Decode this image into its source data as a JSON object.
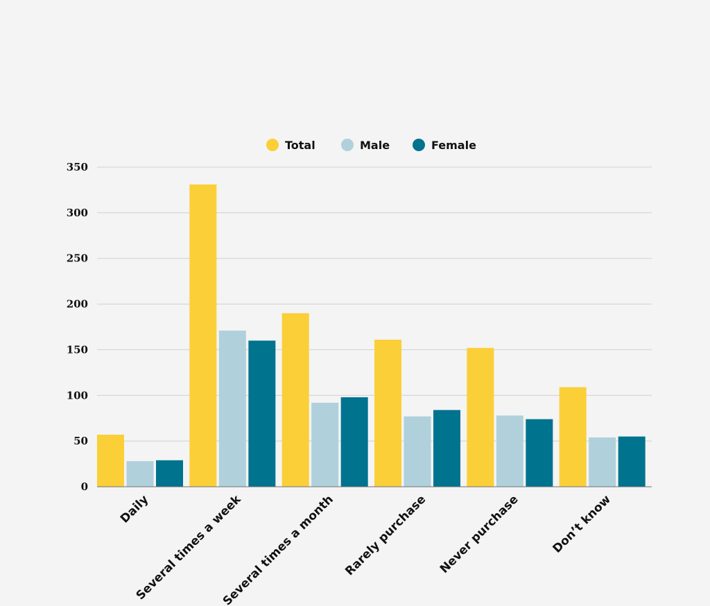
{
  "chart_data": {
    "type": "bar",
    "title": "",
    "xlabel": "",
    "ylabel": "",
    "categories": [
      "Daily",
      "Several times a week",
      "Several times a month",
      "Rarely purchase",
      "Never purchase",
      "Don’t know"
    ],
    "series": [
      {
        "name": "Total",
        "color": "#fbcf37",
        "values": [
          57,
          331,
          190,
          161,
          152,
          109
        ]
      },
      {
        "name": "Male",
        "color": "#b0d0dc",
        "values": [
          28,
          171,
          92,
          77,
          78,
          54
        ]
      },
      {
        "name": "Female",
        "color": "#00738f",
        "values": [
          29,
          160,
          98,
          84,
          74,
          55
        ]
      }
    ],
    "ylim": [
      0,
      350
    ],
    "yticks": [
      0,
      50,
      100,
      150,
      200,
      250,
      300,
      350
    ],
    "grid": true,
    "legend_position": "top-center"
  }
}
